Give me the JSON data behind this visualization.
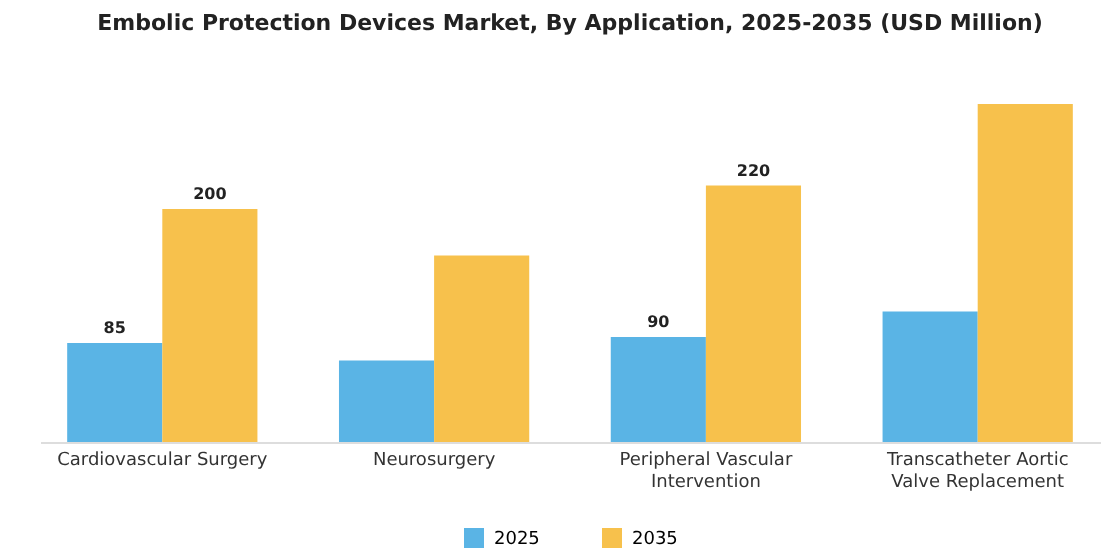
{
  "chart_data": {
    "type": "bar",
    "title": "Embolic Protection Devices Market, By Application, 2025-2035 (USD Million)",
    "categories": [
      "Cardiovascular Surgery",
      "Neurosurgery",
      "Peripheral Vascular Intervention",
      "Transcatheter Aortic Valve Replacement"
    ],
    "series": [
      {
        "name": "2025",
        "color": "#5ab4e5",
        "values": [
          85,
          70,
          90,
          112
        ],
        "value_labels": [
          "85",
          null,
          "90",
          null
        ]
      },
      {
        "name": "2035",
        "color": "#f7c14c",
        "values": [
          200,
          160,
          220,
          290
        ],
        "value_labels": [
          "200",
          null,
          "220",
          null
        ]
      }
    ],
    "legend": "bottom",
    "tick_labels": "x"
  }
}
